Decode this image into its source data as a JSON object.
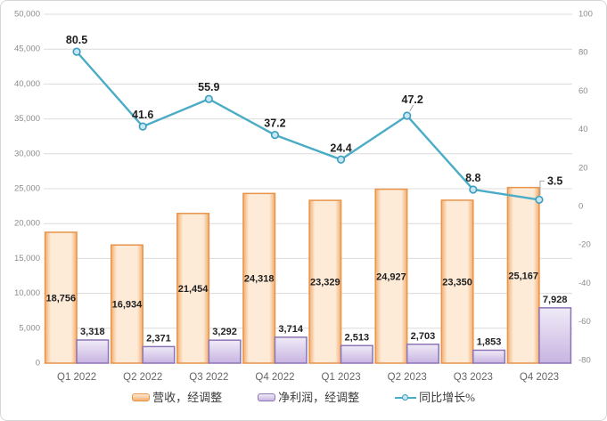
{
  "chart_data": {
    "type": "combo",
    "title": "",
    "categories": [
      "Q1 2022",
      "Q2 2022",
      "Q3 2022",
      "Q4 2022",
      "Q1 2023",
      "Q2 2023",
      "Q3 2023",
      "Q4 2023"
    ],
    "series": [
      {
        "name": "营收，经调整",
        "type": "bar",
        "axis": "left",
        "label_position": "inside-center",
        "values": [
          18756,
          16934,
          21454,
          24318,
          23329,
          24927,
          23350,
          25167
        ]
      },
      {
        "name": "净利润，经调整",
        "type": "bar",
        "axis": "left",
        "label_position": "outside-end",
        "values": [
          3318,
          2371,
          3292,
          3714,
          2513,
          2703,
          1853,
          7928
        ]
      },
      {
        "name": "同比增长%",
        "type": "line",
        "axis": "right",
        "label_position": "above",
        "values": [
          80.5,
          41.6,
          55.9,
          37.2,
          24.4,
          47.2,
          8.8,
          3.5
        ],
        "label_overrides": [
          {
            "i": 5,
            "style": "diag"
          },
          {
            "i": 7,
            "style": "elbow",
            "dy": -21
          }
        ]
      }
    ],
    "left_axis": {
      "min": 0,
      "max": 50000,
      "step": 5000,
      "ticks": [
        50000,
        45000,
        40000,
        35000,
        30000,
        25000,
        20000,
        15000,
        10000,
        5000,
        0
      ]
    },
    "right_axis": {
      "min": -81.5,
      "max": 100,
      "ticks": [
        100,
        80,
        60,
        40,
        20,
        0,
        -20,
        -40,
        -60,
        -80
      ]
    },
    "grid": true,
    "legend_position": "bottom"
  },
  "colors": {
    "revenue_border": "#e8944a",
    "revenue_fill_edge": "#f5ae6e",
    "revenue_fill_center": "#fdebd8",
    "profit_border": "#8d74b5",
    "profit_fill_top": "#efebf7",
    "profit_fill_bottom": "#c9b4e2",
    "line": "#4bacc6",
    "marker_stroke": "#3e9dbe",
    "marker_fill": "#c6e7f4",
    "grid": "#dcdcdc",
    "axis_text": "#8c8c8c",
    "category_text": "#666666",
    "data_label_text": "#1f1f1f",
    "leader": "#a6a6a6"
  }
}
